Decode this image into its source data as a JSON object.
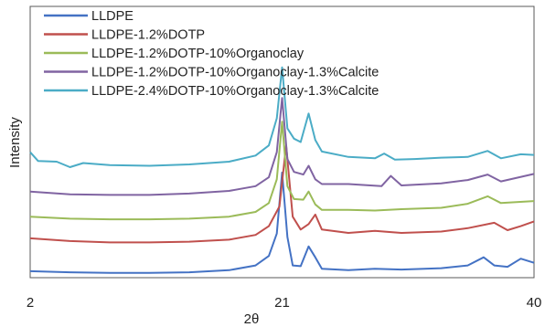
{
  "chart_data": {
    "type": "line",
    "title": "",
    "xlabel": "2θ",
    "ylabel": "Intensity",
    "xlim": [
      2,
      40
    ],
    "xticks": [
      "2",
      "21",
      "40"
    ],
    "grid": false,
    "legend_position": "top-left",
    "series": [
      {
        "name": "LLDPE",
        "color": "#4472C4",
        "points": [
          [
            2,
            0.95
          ],
          [
            5,
            0.8
          ],
          [
            8,
            0.7
          ],
          [
            11,
            0.7
          ],
          [
            14,
            0.8
          ],
          [
            17,
            1.1
          ],
          [
            19,
            1.8
          ],
          [
            20,
            3.2
          ],
          [
            20.6,
            6.5
          ],
          [
            21,
            15.5
          ],
          [
            21.4,
            6.0
          ],
          [
            21.8,
            1.8
          ],
          [
            22.4,
            1.7
          ],
          [
            23,
            4.6
          ],
          [
            23.5,
            3.0
          ],
          [
            24,
            1.3
          ],
          [
            26,
            1.1
          ],
          [
            28,
            1.3
          ],
          [
            30,
            1.2
          ],
          [
            33,
            1.4
          ],
          [
            35,
            1.8
          ],
          [
            36.2,
            3.0
          ],
          [
            37,
            1.8
          ],
          [
            38,
            1.6
          ],
          [
            39,
            2.8
          ],
          [
            40,
            2.2
          ]
        ]
      },
      {
        "name": "LLDPE-1.2%DOTP",
        "color": "#C0504D",
        "points": [
          [
            2,
            5.8
          ],
          [
            5,
            5.4
          ],
          [
            8,
            5.2
          ],
          [
            11,
            5.2
          ],
          [
            14,
            5.3
          ],
          [
            17,
            5.6
          ],
          [
            19,
            6.3
          ],
          [
            20,
            7.6
          ],
          [
            20.8,
            10.5
          ],
          [
            21.3,
            19.5
          ],
          [
            21.8,
            9.0
          ],
          [
            22.4,
            7.1
          ],
          [
            23,
            7.9
          ],
          [
            23.5,
            9.3
          ],
          [
            24,
            7.1
          ],
          [
            26,
            6.6
          ],
          [
            28,
            6.9
          ],
          [
            30,
            6.6
          ],
          [
            33,
            6.8
          ],
          [
            35,
            7.3
          ],
          [
            37,
            8.1
          ],
          [
            38,
            7.0
          ],
          [
            39,
            7.6
          ],
          [
            40,
            8.3
          ]
        ]
      },
      {
        "name": "LLDPE-1.2%DOTP-10%Organoclay",
        "color": "#9BBB59",
        "points": [
          [
            2,
            9.0
          ],
          [
            5,
            8.7
          ],
          [
            8,
            8.6
          ],
          [
            11,
            8.6
          ],
          [
            14,
            8.7
          ],
          [
            17,
            9.0
          ],
          [
            19,
            9.7
          ],
          [
            20,
            11.0
          ],
          [
            20.6,
            14.5
          ],
          [
            21,
            23.0
          ],
          [
            21.4,
            13.5
          ],
          [
            21.9,
            11.6
          ],
          [
            22.6,
            11.5
          ],
          [
            23,
            12.7
          ],
          [
            23.5,
            10.8
          ],
          [
            24,
            10.0
          ],
          [
            26,
            10.0
          ],
          [
            28,
            9.9
          ],
          [
            30,
            10.1
          ],
          [
            33,
            10.3
          ],
          [
            35,
            10.9
          ],
          [
            36.5,
            12.0
          ],
          [
            37.5,
            11.0
          ],
          [
            40,
            11.3
          ]
        ]
      },
      {
        "name": "LLDPE-1.2%DOTP-10%Organoclay-1.3%Calcite",
        "color": "#8064A2",
        "points": [
          [
            2,
            12.7
          ],
          [
            5,
            12.3
          ],
          [
            8,
            12.2
          ],
          [
            11,
            12.2
          ],
          [
            14,
            12.4
          ],
          [
            17,
            12.8
          ],
          [
            19,
            13.5
          ],
          [
            20,
            14.8
          ],
          [
            20.6,
            18.5
          ],
          [
            21,
            26.5
          ],
          [
            21.4,
            17.5
          ],
          [
            21.9,
            15.6
          ],
          [
            22.6,
            15.2
          ],
          [
            23,
            16.5
          ],
          [
            23.5,
            14.5
          ],
          [
            24,
            13.8
          ],
          [
            26,
            13.8
          ],
          [
            28.5,
            13.5
          ],
          [
            29.2,
            15.0
          ],
          [
            30,
            13.6
          ],
          [
            33,
            13.9
          ],
          [
            35,
            14.4
          ],
          [
            36.5,
            15.2
          ],
          [
            37.5,
            14.2
          ],
          [
            40,
            15.3
          ]
        ]
      },
      {
        "name": "LLDPE-2.4%DOTP-10%Organoclay-1.3%Calcite",
        "color": "#4BACC6",
        "points": [
          [
            2,
            18.5
          ],
          [
            2.6,
            17.2
          ],
          [
            4,
            17.1
          ],
          [
            5,
            16.3
          ],
          [
            6,
            16.9
          ],
          [
            8,
            16.6
          ],
          [
            11,
            16.5
          ],
          [
            14,
            16.7
          ],
          [
            17,
            17.1
          ],
          [
            19,
            18.0
          ],
          [
            20,
            19.5
          ],
          [
            20.6,
            23.5
          ],
          [
            21,
            31.0
          ],
          [
            21.4,
            22.0
          ],
          [
            21.9,
            20.5
          ],
          [
            22.4,
            20.0
          ],
          [
            23,
            24.2
          ],
          [
            23.5,
            20.3
          ],
          [
            24,
            18.6
          ],
          [
            26,
            17.8
          ],
          [
            28,
            17.6
          ],
          [
            28.7,
            18.3
          ],
          [
            29.5,
            17.4
          ],
          [
            31,
            17.5
          ],
          [
            33,
            17.7
          ],
          [
            35,
            17.8
          ],
          [
            36.5,
            18.7
          ],
          [
            37.5,
            17.6
          ],
          [
            39,
            18.2
          ],
          [
            40,
            18.1
          ]
        ]
      }
    ]
  }
}
